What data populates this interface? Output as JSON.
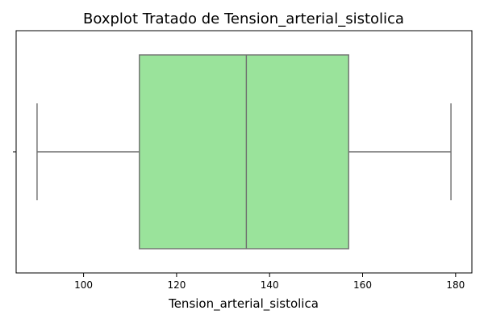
{
  "chart_data": {
    "type": "boxplot",
    "title": "Boxplot Tratado de Tension_arterial_sistolica",
    "xlabel": "Tension_arterial_sistolica",
    "ylabel": "",
    "orientation": "horizontal",
    "xlim": [
      85.5,
      183.5
    ],
    "xticks": [
      100,
      120,
      140,
      160,
      180
    ],
    "xtick_labels": [
      "100",
      "120",
      "140",
      "160",
      "180"
    ],
    "grid": false,
    "box": {
      "whisker_low": 90,
      "q1": 112,
      "median": 135,
      "q3": 157,
      "whisker_high": 179
    },
    "colors": {
      "box_fill": "#9ae39b",
      "box_edge": "#6f6f6f",
      "axis": "#000000"
    }
  }
}
